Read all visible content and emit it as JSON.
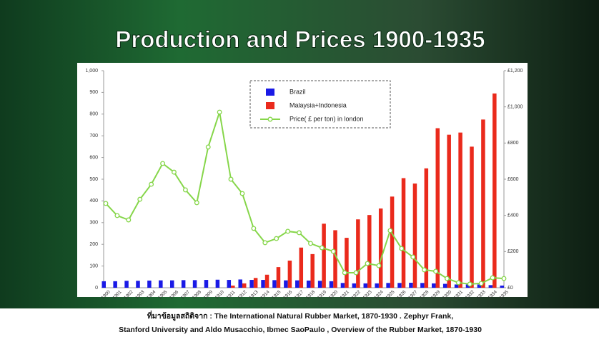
{
  "chart_data": {
    "type": "bar_line",
    "title": "Production and Prices 1900-1935",
    "categories": [
      "1900",
      "1901",
      "1902",
      "1903",
      "1904",
      "1905",
      "1906",
      "1907",
      "1908",
      "1909",
      "1910",
      "1911",
      "1912",
      "1913",
      "1914",
      "1915",
      "1916",
      "1917",
      "1918",
      "1919",
      "1920",
      "1921",
      "1922",
      "1923",
      "1924",
      "1925",
      "1926",
      "1927",
      "1928",
      "1929",
      "1930",
      "1931",
      "1932",
      "1933",
      "1934",
      "1935"
    ],
    "series": [
      {
        "name": "Brazil",
        "type": "bar",
        "color": "#1a1ae6",
        "values": [
          30,
          30,
          32,
          32,
          33,
          34,
          34,
          35,
          35,
          36,
          37,
          36,
          38,
          36,
          36,
          35,
          34,
          34,
          33,
          32,
          30,
          22,
          20,
          20,
          20,
          22,
          22,
          23,
          22,
          20,
          18,
          15,
          15,
          15,
          12,
          10
        ]
      },
      {
        "name": "Malaysia+Indonesia",
        "type": "bar",
        "color": "#ea2a1c",
        "values": [
          0,
          0,
          0,
          0,
          0,
          0,
          0,
          0,
          0,
          0,
          0,
          10,
          20,
          45,
          60,
          95,
          125,
          185,
          155,
          295,
          265,
          230,
          315,
          335,
          365,
          420,
          505,
          480,
          550,
          735,
          705,
          715,
          650,
          775,
          895,
          null
        ]
      },
      {
        "name": "Price( £ per ton) in london",
        "type": "line",
        "axis": "y2",
        "color": "#86d64a",
        "values": [
          466,
          399,
          375,
          489,
          572,
          687,
          639,
          541,
          470,
          778,
          971,
          600,
          521,
          328,
          249,
          272,
          312,
          304,
          245,
          221,
          201,
          83,
          83,
          134,
          122,
          316,
          217,
          170,
          99,
          91,
          51,
          28,
          20,
          24,
          55,
          51
        ]
      }
    ],
    "ylim": [
      0,
      1000
    ],
    "yticks": [
      0,
      100,
      200,
      300,
      400,
      500,
      600,
      700,
      800,
      900,
      {
        "value": 1000,
        "label": "1,000"
      }
    ],
    "y2lim": [
      0,
      1200
    ],
    "y2ticks": [
      {
        "value": 0,
        "label": "£0"
      },
      {
        "value": 200,
        "label": "£200"
      },
      {
        "value": 400,
        "label": "£400"
      },
      {
        "value": 600,
        "label": "£600"
      },
      {
        "value": 800,
        "label": "£800"
      },
      {
        "value": 1000,
        "label": "£1,000"
      },
      {
        "value": 1200,
        "label": "£1,200"
      }
    ],
    "source": [
      "ที่มาข้อมูลสถิติจาก : The International Natural Rubber Market, 1870-1930 . Zephyr Frank,",
      "Stanford University and Aldo Musacchio, Ibmec SaoPaulo , Overview of the Rubber Market, 1870-1930"
    ]
  }
}
